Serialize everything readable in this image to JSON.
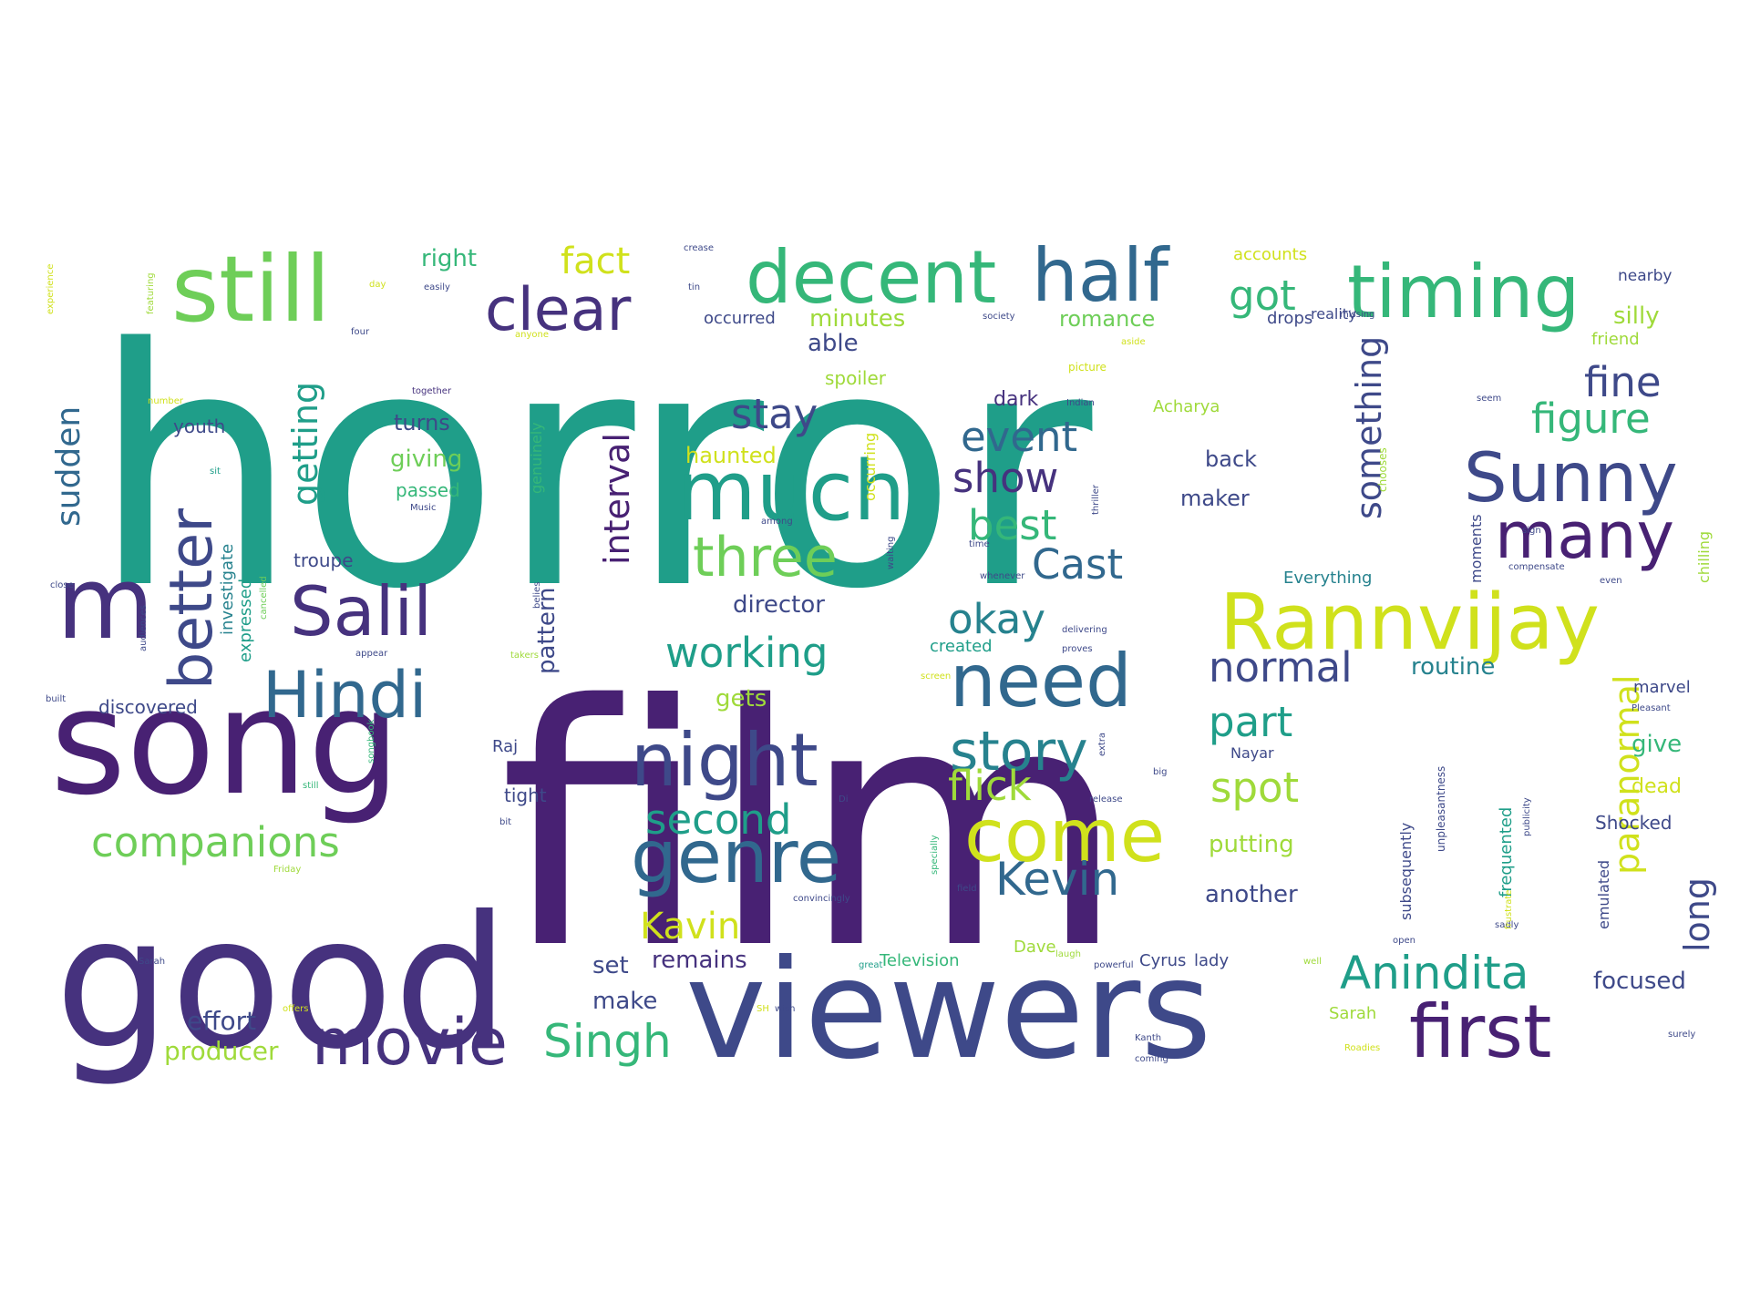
{
  "word_cloud": {
    "colors": {
      "dark_purple": "#46327e",
      "purple": "#482173",
      "indigo": "#3e4989",
      "blue": "#31688e",
      "teal_blue": "#26828e",
      "teal": "#1f9e89",
      "sea_green": "#35b779",
      "green": "#6ece58",
      "light_green": "#9fda3a",
      "yellow": "#d0e11c",
      "bright_yellow": "#fde725"
    },
    "words": [
      {
        "text": "horror",
        "color": "#1f9e89"
      },
      {
        "text": "film",
        "color": "#482173"
      },
      {
        "text": "good",
        "color": "#46327e"
      },
      {
        "text": "song",
        "color": "#482173"
      },
      {
        "text": "viewers",
        "color": "#3e4989"
      },
      {
        "text": "m",
        "color": "#46327e"
      },
      {
        "text": "still",
        "color": "#6ece58"
      },
      {
        "text": "decent",
        "color": "#35b779"
      },
      {
        "text": "half",
        "color": "#31688e"
      },
      {
        "text": "timing",
        "color": "#35b779"
      },
      {
        "text": "clear",
        "color": "#46327e"
      },
      {
        "text": "Rannvijay",
        "color": "#d0e11c"
      },
      {
        "text": "much",
        "color": "#1f9e89"
      },
      {
        "text": "need",
        "color": "#31688e"
      },
      {
        "text": "night",
        "color": "#3e4989"
      },
      {
        "text": "first",
        "color": "#482173"
      },
      {
        "text": "Sunny",
        "color": "#3e4989"
      },
      {
        "text": "many",
        "color": "#482173"
      },
      {
        "text": "Salil",
        "color": "#46327e"
      },
      {
        "text": "Hindi",
        "color": "#31688e"
      },
      {
        "text": "genre",
        "color": "#31688e"
      },
      {
        "text": "come",
        "color": "#d0e11c"
      },
      {
        "text": "movie",
        "color": "#46327e"
      },
      {
        "text": "story",
        "color": "#26828e"
      },
      {
        "text": "three",
        "color": "#6ece58"
      },
      {
        "text": "better",
        "color": "#3e4989"
      },
      {
        "text": "Anindita",
        "color": "#1f9e89"
      },
      {
        "text": "Kevin",
        "color": "#31688e"
      },
      {
        "text": "companions",
        "color": "#6ece58"
      },
      {
        "text": "Singh",
        "color": "#35b779"
      },
      {
        "text": "second",
        "color": "#1f9e89"
      },
      {
        "text": "working",
        "color": "#1f9e89"
      },
      {
        "text": "okay",
        "color": "#26828e"
      },
      {
        "text": "stay",
        "color": "#3e4989"
      },
      {
        "text": "event",
        "color": "#31688e"
      },
      {
        "text": "show",
        "color": "#46327e"
      },
      {
        "text": "best",
        "color": "#35b779"
      },
      {
        "text": "Cast",
        "color": "#31688e"
      },
      {
        "text": "fine",
        "color": "#3e4989"
      },
      {
        "text": "figure",
        "color": "#35b779"
      },
      {
        "text": "normal",
        "color": "#3e4989"
      },
      {
        "text": "part",
        "color": "#1f9e89"
      },
      {
        "text": "spot",
        "color": "#9fda3a"
      },
      {
        "text": "flick",
        "color": "#9fda3a"
      },
      {
        "text": "Kavin",
        "color": "#d0e11c"
      },
      {
        "text": "got",
        "color": "#35b779"
      },
      {
        "text": "fact",
        "color": "#d0e11c"
      },
      {
        "text": "getting",
        "color": "#1f9e89"
      },
      {
        "text": "sudden",
        "color": "#31688e"
      },
      {
        "text": "interval",
        "color": "#482173"
      },
      {
        "text": "something",
        "color": "#3e4989"
      },
      {
        "text": "paranormal",
        "color": "#d0e11c"
      },
      {
        "text": "long",
        "color": "#3e4989"
      },
      {
        "text": "director",
        "color": "#3e4989"
      },
      {
        "text": "producer",
        "color": "#9fda3a"
      },
      {
        "text": "effort",
        "color": "#3e4989"
      },
      {
        "text": "remains",
        "color": "#46327e"
      },
      {
        "text": "make",
        "color": "#3e4989"
      },
      {
        "text": "set",
        "color": "#3e4989"
      },
      {
        "text": "focused",
        "color": "#3e4989"
      },
      {
        "text": "give",
        "color": "#35b779"
      },
      {
        "text": "dead",
        "color": "#d0e11c"
      },
      {
        "text": "Shocked",
        "color": "#3e4989"
      },
      {
        "text": "routine",
        "color": "#26828e"
      },
      {
        "text": "putting",
        "color": "#9fda3a"
      },
      {
        "text": "another",
        "color": "#3e4989"
      },
      {
        "text": "minutes",
        "color": "#9fda3a"
      },
      {
        "text": "romance",
        "color": "#6ece58"
      },
      {
        "text": "able",
        "color": "#3e4989"
      },
      {
        "text": "dark",
        "color": "#46327e"
      },
      {
        "text": "back",
        "color": "#3e4989"
      },
      {
        "text": "maker",
        "color": "#3e4989"
      },
      {
        "text": "Acharya",
        "color": "#9fda3a"
      },
      {
        "text": "right",
        "color": "#35b779"
      },
      {
        "text": "accounts",
        "color": "#d0e11c"
      },
      {
        "text": "occurred",
        "color": "#3e4989"
      },
      {
        "text": "reality",
        "color": "#3e4989"
      },
      {
        "text": "drops",
        "color": "#3e4989"
      },
      {
        "text": "silly",
        "color": "#9fda3a"
      },
      {
        "text": "friend",
        "color": "#9fda3a"
      },
      {
        "text": "nearby",
        "color": "#3e4989"
      },
      {
        "text": "turns",
        "color": "#3e4989"
      },
      {
        "text": "giving",
        "color": "#6ece58"
      },
      {
        "text": "passed",
        "color": "#35b779"
      },
      {
        "text": "haunted",
        "color": "#d0e11c"
      },
      {
        "text": "youth",
        "color": "#3e4989"
      },
      {
        "text": "troupe",
        "color": "#3e4989"
      },
      {
        "text": "spoiler",
        "color": "#9fda3a"
      },
      {
        "text": "pattern",
        "color": "#3e4989"
      },
      {
        "text": "gets",
        "color": "#9fda3a"
      },
      {
        "text": "discovered",
        "color": "#3e4989"
      },
      {
        "text": "Raj",
        "color": "#3e4989"
      },
      {
        "text": "tight",
        "color": "#3e4989"
      },
      {
        "text": "created",
        "color": "#1f9e89"
      },
      {
        "text": "Everything",
        "color": "#26828e"
      },
      {
        "text": "Television",
        "color": "#35b779"
      },
      {
        "text": "Cyrus",
        "color": "#3e4989"
      },
      {
        "text": "lady",
        "color": "#3e4989"
      },
      {
        "text": "Dave",
        "color": "#9fda3a"
      },
      {
        "text": "Sarah",
        "color": "#9fda3a"
      },
      {
        "text": "investigate",
        "color": "#26828e"
      },
      {
        "text": "expressed",
        "color": "#1f9e89"
      },
      {
        "text": "subsequently",
        "color": "#3e4989"
      },
      {
        "text": "frequented",
        "color": "#1f9e89"
      },
      {
        "text": "emulated",
        "color": "#3e4989"
      },
      {
        "text": "chilling",
        "color": "#9fda3a"
      },
      {
        "text": "marvel",
        "color": "#3e4989"
      },
      {
        "text": "Nayar",
        "color": "#3e4989"
      },
      {
        "text": "occurring",
        "color": "#d0e11c"
      },
      {
        "text": "genuinely",
        "color": "#35b779"
      },
      {
        "text": "moments",
        "color": "#3e4989"
      },
      {
        "text": "together",
        "color": "#46327e"
      },
      {
        "text": "picture",
        "color": "#d0e11c"
      },
      {
        "text": "crease",
        "color": "#3e4989"
      },
      {
        "text": "easily",
        "color": "#3e4989"
      },
      {
        "text": "anyone",
        "color": "#d0e11c"
      },
      {
        "text": "society",
        "color": "#3e4989"
      },
      {
        "text": "aside",
        "color": "#d0e11c"
      },
      {
        "text": "Indian",
        "color": "#3e4989"
      },
      {
        "text": "thriller",
        "color": "#3e4989"
      },
      {
        "text": "chooses",
        "color": "#9fda3a"
      },
      {
        "text": "time",
        "color": "#3e4989"
      },
      {
        "text": "among",
        "color": "#3e4989"
      },
      {
        "text": "whenever",
        "color": "#3e4989"
      },
      {
        "text": "delivering",
        "color": "#3e4989"
      },
      {
        "text": "proves",
        "color": "#3e4989"
      },
      {
        "text": "appear",
        "color": "#3e4989"
      },
      {
        "text": "takers",
        "color": "#9fda3a"
      },
      {
        "text": "screen",
        "color": "#d0e11c"
      },
      {
        "text": "built",
        "color": "#3e4989"
      },
      {
        "text": "close",
        "color": "#3e4989"
      },
      {
        "text": "Music",
        "color": "#3e4989"
      },
      {
        "text": "great",
        "color": "#1f9e89"
      },
      {
        "text": "powerful",
        "color": "#3e4989"
      },
      {
        "text": "convincingly",
        "color": "#3e4989"
      },
      {
        "text": "laugh",
        "color": "#9fda3a"
      },
      {
        "text": "release",
        "color": "#3e4989"
      },
      {
        "text": "Friday",
        "color": "#9fda3a"
      },
      {
        "text": "offers",
        "color": "#d0e11c"
      },
      {
        "text": "wish",
        "color": "#3e4989"
      },
      {
        "text": "Pleasant",
        "color": "#3e4989"
      },
      {
        "text": "unpleasantness",
        "color": "#3e4989"
      },
      {
        "text": "publicity",
        "color": "#3e4989"
      },
      {
        "text": "sadly",
        "color": "#3e4989"
      },
      {
        "text": "open",
        "color": "#3e4989"
      },
      {
        "text": "surely",
        "color": "#3e4989"
      },
      {
        "text": "Roadies",
        "color": "#d0e11c"
      },
      {
        "text": "coming",
        "color": "#3e4989"
      },
      {
        "text": "Kanth",
        "color": "#3e4989"
      },
      {
        "text": "experience",
        "color": "#d0e11c"
      },
      {
        "text": "featuring",
        "color": "#9fda3a"
      },
      {
        "text": "number",
        "color": "#d0e11c"
      },
      {
        "text": "day",
        "color": "#d0e11c"
      },
      {
        "text": "four",
        "color": "#3e4989"
      },
      {
        "text": "sit",
        "color": "#1f9e89"
      },
      {
        "text": "seem",
        "color": "#3e4989"
      },
      {
        "text": "compensate",
        "color": "#3e4989"
      },
      {
        "text": "even",
        "color": "#3e4989"
      },
      {
        "text": "specially",
        "color": "#35b779"
      },
      {
        "text": "cancelled",
        "color": "#6ece58"
      },
      {
        "text": "audiences",
        "color": "#3e4989"
      },
      {
        "text": "belies",
        "color": "#3e4989"
      },
      {
        "text": "songbook",
        "color": "#35b779"
      },
      {
        "text": "Sarah",
        "color": "#3e4989"
      },
      {
        "text": "still",
        "color": "#35b779"
      },
      {
        "text": "bit",
        "color": "#3e4989"
      },
      {
        "text": "extra",
        "color": "#3e4989"
      },
      {
        "text": "big",
        "color": "#3e4989"
      },
      {
        "text": "missing",
        "color": "#3e4989"
      },
      {
        "text": "sign",
        "color": "#3e4989"
      },
      {
        "text": "frustrate",
        "color": "#d0e11c"
      },
      {
        "text": "field",
        "color": "#3e4989"
      },
      {
        "text": "waiting",
        "color": "#3e4989"
      },
      {
        "text": "tin",
        "color": "#3e4989"
      },
      {
        "text": "well",
        "color": "#9fda3a"
      },
      {
        "text": "Di",
        "color": "#3e4989"
      },
      {
        "text": "SH",
        "color": "#d0e11c"
      }
    ]
  }
}
